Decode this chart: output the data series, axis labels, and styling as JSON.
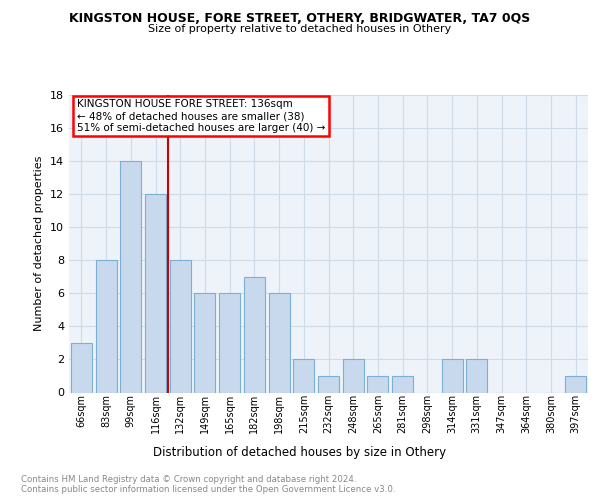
{
  "title1": "KINGSTON HOUSE, FORE STREET, OTHERY, BRIDGWATER, TA7 0QS",
  "title2": "Size of property relative to detached houses in Othery",
  "xlabel": "Distribution of detached houses by size in Othery",
  "ylabel": "Number of detached properties",
  "categories": [
    "66sqm",
    "83sqm",
    "99sqm",
    "116sqm",
    "132sqm",
    "149sqm",
    "165sqm",
    "182sqm",
    "198sqm",
    "215sqm",
    "232sqm",
    "248sqm",
    "265sqm",
    "281sqm",
    "298sqm",
    "314sqm",
    "331sqm",
    "347sqm",
    "364sqm",
    "380sqm",
    "397sqm"
  ],
  "values": [
    3,
    8,
    14,
    12,
    8,
    6,
    6,
    7,
    6,
    2,
    1,
    2,
    1,
    1,
    0,
    2,
    2,
    0,
    0,
    0,
    1
  ],
  "bar_color": "#c9d9ed",
  "bar_edgecolor": "#7bafd4",
  "highlight_index": 4,
  "highlight_color": "#cc0000",
  "redline_x": 3.5,
  "ylim": [
    0,
    18
  ],
  "yticks": [
    0,
    2,
    4,
    6,
    8,
    10,
    12,
    14,
    16,
    18
  ],
  "annotation_title": "KINGSTON HOUSE FORE STREET: 136sqm",
  "annotation_line1": "← 48% of detached houses are smaller (38)",
  "annotation_line2": "51% of semi-detached houses are larger (40) →",
  "footer1": "Contains HM Land Registry data © Crown copyright and database right 2024.",
  "footer2": "Contains public sector information licensed under the Open Government Licence v3.0.",
  "bg_color": "#ffffff",
  "plot_bg_color": "#eef3f9",
  "grid_color": "#d0dbe8"
}
